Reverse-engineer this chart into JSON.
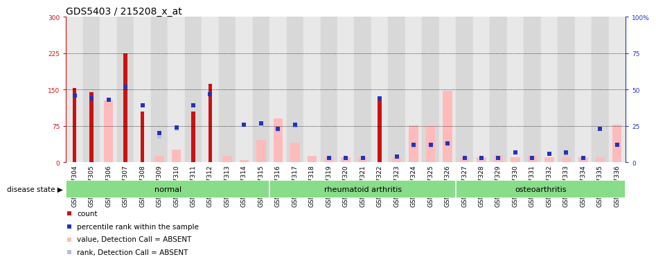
{
  "title": "GDS5403 / 215208_x_at",
  "samples": [
    "GSM1337304",
    "GSM1337305",
    "GSM1337306",
    "GSM1337307",
    "GSM1337308",
    "GSM1337309",
    "GSM1337310",
    "GSM1337311",
    "GSM1337312",
    "GSM1337313",
    "GSM1337314",
    "GSM1337315",
    "GSM1337316",
    "GSM1337317",
    "GSM1337318",
    "GSM1337319",
    "GSM1337320",
    "GSM1337321",
    "GSM1337322",
    "GSM1337323",
    "GSM1337324",
    "GSM1337325",
    "GSM1337326",
    "GSM1337327",
    "GSM1337328",
    "GSM1337329",
    "GSM1337330",
    "GSM1337331",
    "GSM1337332",
    "GSM1337333",
    "GSM1337334",
    "GSM1337335",
    "GSM1337336"
  ],
  "red_bars": [
    153,
    145,
    0,
    225,
    105,
    0,
    0,
    105,
    162,
    0,
    0,
    0,
    0,
    0,
    0,
    0,
    0,
    0,
    130,
    0,
    0,
    0,
    0,
    0,
    0,
    0,
    0,
    0,
    0,
    0,
    0,
    0,
    0
  ],
  "blue_squares": [
    46,
    44,
    43,
    52,
    39,
    20,
    24,
    39,
    47,
    0,
    26,
    27,
    23,
    26,
    0,
    3,
    3,
    3,
    44,
    4,
    12,
    12,
    13,
    3,
    3,
    3,
    7,
    3,
    6,
    7,
    3,
    23,
    12
  ],
  "pink_bars": [
    0,
    0,
    128,
    0,
    0,
    13,
    27,
    0,
    0,
    13,
    5,
    47,
    90,
    40,
    13,
    10,
    10,
    10,
    0,
    10,
    77,
    75,
    148,
    10,
    10,
    15,
    10,
    13,
    10,
    10,
    10,
    10,
    78
  ],
  "lavender_squares": [
    0,
    0,
    0,
    0,
    0,
    18,
    23,
    0,
    0,
    0,
    26,
    26,
    22,
    25,
    0,
    3,
    3,
    3,
    0,
    4,
    11,
    11,
    13,
    3,
    3,
    3,
    7,
    3,
    6,
    6,
    3,
    23,
    12
  ],
  "groups": [
    {
      "label": "normal",
      "start": 0,
      "end": 12
    },
    {
      "label": "rheumatoid arthritis",
      "start": 12,
      "end": 23
    },
    {
      "label": "osteoarthritis",
      "start": 23,
      "end": 33
    }
  ],
  "ylim_left": [
    0,
    300
  ],
  "ylim_right": [
    0,
    100
  ],
  "yticks_left": [
    0,
    75,
    150,
    225,
    300
  ],
  "yticks_right": [
    0,
    25,
    50,
    75,
    100
  ],
  "ytick_labels_left": [
    "0",
    "75",
    "150",
    "225",
    "300"
  ],
  "ytick_labels_right": [
    "0",
    "25",
    "50",
    "75",
    "100%"
  ],
  "red_color": "#cc1111",
  "blue_color": "#2233bb",
  "pink_color": "#ffbbbb",
  "lavender_color": "#bbbbdd",
  "group_green": "#88dd88",
  "col_bg_even": "#e8e8e8",
  "col_bg_odd": "#d8d8d8",
  "title_fontsize": 10,
  "tick_fontsize": 6.5,
  "label_fontsize": 7.5,
  "legend_fontsize": 7.5
}
